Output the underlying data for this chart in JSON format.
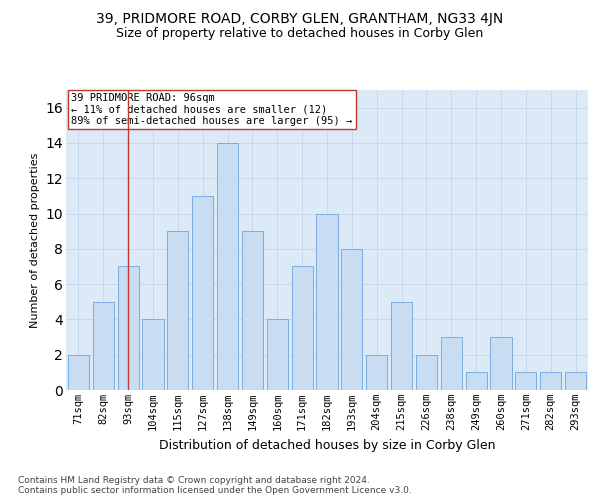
{
  "title1": "39, PRIDMORE ROAD, CORBY GLEN, GRANTHAM, NG33 4JN",
  "title2": "Size of property relative to detached houses in Corby Glen",
  "xlabel": "Distribution of detached houses by size in Corby Glen",
  "ylabel": "Number of detached properties",
  "categories": [
    "71sqm",
    "82sqm",
    "93sqm",
    "104sqm",
    "115sqm",
    "127sqm",
    "138sqm",
    "149sqm",
    "160sqm",
    "171sqm",
    "182sqm",
    "193sqm",
    "204sqm",
    "215sqm",
    "226sqm",
    "238sqm",
    "249sqm",
    "260sqm",
    "271sqm",
    "282sqm",
    "293sqm"
  ],
  "values": [
    2,
    5,
    7,
    4,
    9,
    11,
    14,
    9,
    4,
    7,
    10,
    8,
    2,
    5,
    2,
    3,
    1,
    3,
    1,
    1,
    1
  ],
  "bar_color": "#c9ddf2",
  "bar_edge_color": "#7aade0",
  "vline_x_index": 2,
  "vline_color": "#c0392b",
  "annotation_line1": "39 PRIDMORE ROAD: 96sqm",
  "annotation_line2": "← 11% of detached houses are smaller (12)",
  "annotation_line3": "89% of semi-detached houses are larger (95) →",
  "annotation_box_color": "#ffffff",
  "annotation_box_edge_color": "#c0392b",
  "ylim": [
    0,
    17
  ],
  "grid_color": "#c8d8ec",
  "background_color": "#dce9f7",
  "footer": "Contains HM Land Registry data © Crown copyright and database right 2024.\nContains public sector information licensed under the Open Government Licence v3.0.",
  "title1_fontsize": 10,
  "title2_fontsize": 9,
  "xlabel_fontsize": 9,
  "ylabel_fontsize": 8,
  "tick_fontsize": 7.5,
  "annotation_fontsize": 7.5,
  "footer_fontsize": 6.5
}
